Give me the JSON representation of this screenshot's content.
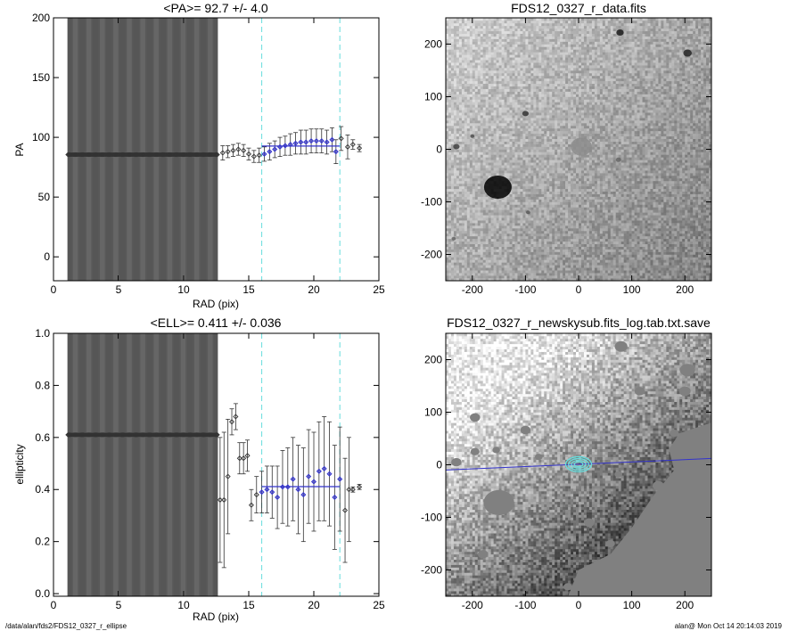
{
  "footer": {
    "path": "/data/alan/fds2/FDS12_0327_r_ellipse",
    "stamp": "alan@  Mon Oct 14 20:14:03 2019"
  },
  "chart_data": [
    {
      "id": "pa",
      "type": "scatter",
      "title": "<PA>=  92.7 +/-   4.0",
      "xlabel": "RAD (pix)",
      "ylabel": "PA",
      "xlim": [
        0,
        25
      ],
      "ylim": [
        -20,
        200
      ],
      "xticks": [
        0,
        5,
        10,
        15,
        20,
        25
      ],
      "yticks": [
        0,
        50,
        100,
        150,
        200
      ],
      "color_accent": "#3333cc",
      "color_vline": "#66dddd",
      "vlines": [
        16.0,
        22.0
      ],
      "fit_line": {
        "x": [
          16.0,
          22.0
        ],
        "y": 92.7
      },
      "points_flat": {
        "x_from": 1.1,
        "x_to": 12.6,
        "count": 180,
        "y": 85.5,
        "error_to_plot_edge": true
      },
      "points": [
        {
          "x": 13.0,
          "y": 87,
          "err": 6
        },
        {
          "x": 13.4,
          "y": 88,
          "err": 5
        },
        {
          "x": 13.8,
          "y": 89,
          "err": 5
        },
        {
          "x": 14.2,
          "y": 90,
          "err": 5
        },
        {
          "x": 14.6,
          "y": 89,
          "err": 5
        },
        {
          "x": 15.0,
          "y": 86,
          "err": 5
        },
        {
          "x": 15.4,
          "y": 84,
          "err": 5
        },
        {
          "x": 15.8,
          "y": 85,
          "err": 6
        },
        {
          "x": 16.2,
          "y": 86,
          "err": 6
        },
        {
          "x": 16.6,
          "y": 88,
          "err": 7
        },
        {
          "x": 17.0,
          "y": 90,
          "err": 7
        },
        {
          "x": 17.4,
          "y": 92,
          "err": 8
        },
        {
          "x": 17.8,
          "y": 93,
          "err": 8
        },
        {
          "x": 18.2,
          "y": 94,
          "err": 9
        },
        {
          "x": 18.6,
          "y": 95,
          "err": 9
        },
        {
          "x": 19.0,
          "y": 96,
          "err": 10
        },
        {
          "x": 19.4,
          "y": 96,
          "err": 10
        },
        {
          "x": 19.8,
          "y": 97,
          "err": 10
        },
        {
          "x": 20.2,
          "y": 97,
          "err": 10
        },
        {
          "x": 20.6,
          "y": 97,
          "err": 10
        },
        {
          "x": 21.0,
          "y": 96,
          "err": 10
        },
        {
          "x": 21.4,
          "y": 98,
          "err": 10
        },
        {
          "x": 21.7,
          "y": 88,
          "err": 10
        },
        {
          "x": 22.1,
          "y": 99,
          "err": 10
        },
        {
          "x": 22.6,
          "y": 92,
          "err": 10
        },
        {
          "x": 23.0,
          "y": 94,
          "err": 4
        },
        {
          "x": 23.5,
          "y": 91,
          "err": 3
        }
      ]
    },
    {
      "id": "ell",
      "type": "scatter",
      "title": "<ELL>= 0.411 +/-  0.036",
      "xlabel": "RAD (pix)",
      "ylabel": "ellipticity",
      "xlim": [
        0,
        25
      ],
      "ylim": [
        -0.01,
        1.0
      ],
      "xticks": [
        0,
        5,
        10,
        15,
        20,
        25
      ],
      "yticks": [
        0.0,
        0.2,
        0.4,
        0.6,
        0.8,
        1.0
      ],
      "ytick_labels": [
        "0.0",
        "0.2",
        "0.4",
        "0.6",
        "0.8",
        "1.0"
      ],
      "color_accent": "#3333cc",
      "color_vline": "#66dddd",
      "vlines": [
        16.0,
        22.0
      ],
      "fit_line": {
        "x": [
          16.0,
          22.0
        ],
        "y": 0.411
      },
      "points_flat": {
        "x_from": 1.1,
        "x_to": 12.6,
        "count": 180,
        "y": 0.61,
        "error_to_plot_edge": true
      },
      "points": [
        {
          "x": 12.8,
          "y": 0.36,
          "err": 0.24
        },
        {
          "x": 13.1,
          "y": 0.36,
          "err": 0.26
        },
        {
          "x": 13.4,
          "y": 0.45,
          "err": 0.22
        },
        {
          "x": 13.7,
          "y": 0.66,
          "err": 0.05
        },
        {
          "x": 14.0,
          "y": 0.68,
          "err": 0.05
        },
        {
          "x": 14.3,
          "y": 0.52,
          "err": 0.06
        },
        {
          "x": 14.6,
          "y": 0.52,
          "err": 0.06
        },
        {
          "x": 14.9,
          "y": 0.53,
          "err": 0.06
        },
        {
          "x": 15.2,
          "y": 0.34,
          "err": 0.06
        },
        {
          "x": 15.6,
          "y": 0.38,
          "err": 0.07
        },
        {
          "x": 16.0,
          "y": 0.39,
          "err": 0.08
        },
        {
          "x": 16.4,
          "y": 0.4,
          "err": 0.09
        },
        {
          "x": 16.8,
          "y": 0.39,
          "err": 0.1
        },
        {
          "x": 17.2,
          "y": 0.37,
          "err": 0.12
        },
        {
          "x": 17.6,
          "y": 0.41,
          "err": 0.14
        },
        {
          "x": 18.0,
          "y": 0.41,
          "err": 0.15
        },
        {
          "x": 18.4,
          "y": 0.44,
          "err": 0.16
        },
        {
          "x": 18.8,
          "y": 0.4,
          "err": 0.17
        },
        {
          "x": 19.2,
          "y": 0.38,
          "err": 0.18
        },
        {
          "x": 19.6,
          "y": 0.45,
          "err": 0.18
        },
        {
          "x": 20.0,
          "y": 0.43,
          "err": 0.19
        },
        {
          "x": 20.4,
          "y": 0.47,
          "err": 0.19
        },
        {
          "x": 20.8,
          "y": 0.48,
          "err": 0.2
        },
        {
          "x": 21.2,
          "y": 0.46,
          "err": 0.2
        },
        {
          "x": 21.6,
          "y": 0.37,
          "err": 0.2
        },
        {
          "x": 22.0,
          "y": 0.44,
          "err": 0.2
        },
        {
          "x": 22.4,
          "y": 0.32,
          "err": 0.2
        },
        {
          "x": 22.7,
          "y": 0.4,
          "err": 0.2
        },
        {
          "x": 23.0,
          "y": 0.4,
          "err": 0.01
        },
        {
          "x": 23.5,
          "y": 0.41,
          "err": 0.01
        }
      ]
    },
    {
      "id": "img1",
      "type": "heatmap",
      "title": "FDS12_0327_r_data.fits",
      "xlim": [
        -250,
        250
      ],
      "ylim": [
        -250,
        250
      ],
      "xticks": [
        -200,
        -100,
        0,
        100,
        200
      ],
      "yticks": [
        -200,
        -100,
        0,
        100,
        200
      ],
      "colormap": "grayscale",
      "sources": [
        {
          "x": -152,
          "y": -72,
          "r": 26,
          "v": 0.0
        },
        {
          "x": 78,
          "y": 222,
          "r": 7,
          "v": 0.1
        },
        {
          "x": 205,
          "y": 183,
          "r": 8,
          "v": 0.15
        },
        {
          "x": -100,
          "y": 68,
          "r": 6,
          "v": 0.2
        },
        {
          "x": -230,
          "y": 5,
          "r": 6,
          "v": 0.25
        },
        {
          "x": -200,
          "y": 25,
          "r": 4,
          "v": 0.3
        },
        {
          "x": -95,
          "y": -120,
          "r": 4,
          "v": 0.35
        },
        {
          "x": -235,
          "y": -170,
          "r": 4,
          "v": 0.4
        },
        {
          "x": 75,
          "y": -20,
          "r": 5,
          "v": 0.4
        },
        {
          "x": 5,
          "y": 5,
          "r": 20,
          "v": 0.55
        }
      ]
    },
    {
      "id": "img2",
      "type": "heatmap",
      "title": "FDS12_0327_r_newskysub.fits_log.tab.txt.save",
      "xlim": [
        -250,
        250
      ],
      "ylim": [
        -250,
        250
      ],
      "xticks": [
        -200,
        -100,
        0,
        100,
        200
      ],
      "yticks": [
        -200,
        -100,
        0,
        100,
        200
      ],
      "colormap": "grayscale",
      "mask_color": "#808080",
      "contour_color": "#66dddd",
      "line_color": "#3333cc",
      "major_axis_line": {
        "from": [
          -250,
          -10
        ],
        "to": [
          250,
          12
        ]
      },
      "contours": [
        {
          "a": 18,
          "b": 8
        },
        {
          "a": 14,
          "b": 6
        },
        {
          "a": 10,
          "b": 4
        },
        {
          "a": 6,
          "b": 2.5
        }
      ],
      "masks": [
        {
          "x": -150,
          "y": -72,
          "r": 24
        },
        {
          "x": -195,
          "y": 25,
          "r": 7
        },
        {
          "x": -155,
          "y": 28,
          "r": 6
        },
        {
          "x": -230,
          "y": 5,
          "r": 8
        },
        {
          "x": -195,
          "y": 90,
          "r": 8
        },
        {
          "x": -100,
          "y": 66,
          "r": 8
        },
        {
          "x": 80,
          "y": 225,
          "r": 10
        },
        {
          "x": 115,
          "y": 140,
          "r": 8
        },
        {
          "x": 205,
          "y": 180,
          "r": 12
        },
        {
          "x": 200,
          "y": 140,
          "r": 9
        },
        {
          "x": 180,
          "y": 60,
          "r": 7
        },
        {
          "x": 75,
          "y": -18,
          "r": 6
        },
        {
          "x": 20,
          "y": -110,
          "r": 8
        },
        {
          "x": 60,
          "y": -150,
          "r": 7
        },
        {
          "x": -180,
          "y": -170,
          "r": 8
        },
        {
          "x": -20,
          "y": -232,
          "r": 7
        },
        {
          "x": -75,
          "y": 15,
          "r": 6
        },
        {
          "x": 150,
          "y": -40,
          "r": 9
        }
      ]
    }
  ]
}
